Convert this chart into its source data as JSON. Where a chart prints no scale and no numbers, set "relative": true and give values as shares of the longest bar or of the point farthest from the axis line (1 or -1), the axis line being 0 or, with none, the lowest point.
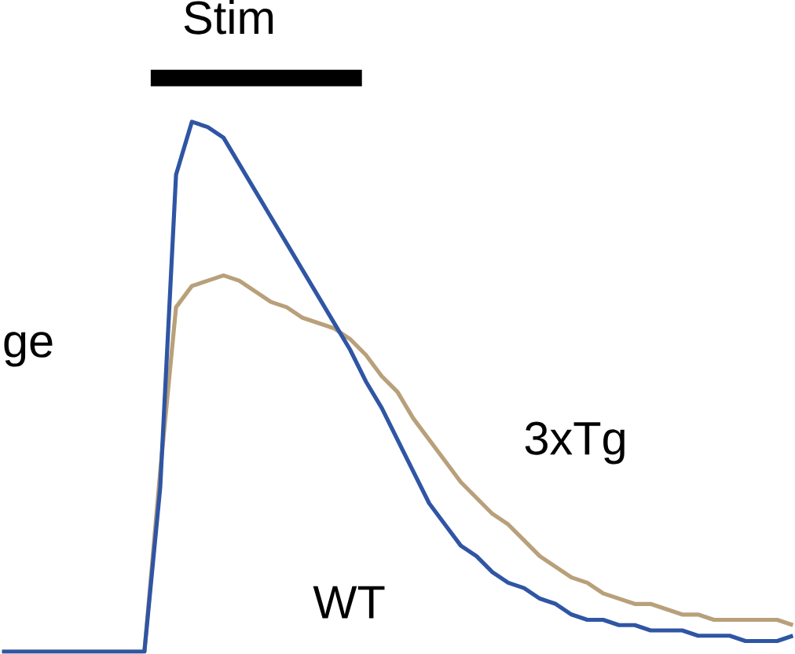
{
  "chart_data": {
    "type": "line",
    "relative": true,
    "marker": "none",
    "line_style": "solid",
    "annotations": [
      "Stim",
      "ge"
    ],
    "categories": [
      null,
      null,
      null,
      null,
      null,
      null,
      null,
      null,
      null,
      null,
      null,
      null,
      null,
      null,
      null,
      null,
      null,
      null,
      null,
      null,
      null,
      null,
      null,
      null,
      null,
      null,
      null,
      null,
      null,
      null,
      null,
      null,
      null,
      null,
      null,
      null,
      null,
      null,
      null,
      null,
      null,
      null,
      null,
      null,
      null,
      null,
      null,
      null,
      null,
      null,
      null
    ],
    "series": [
      {
        "name": "3xTg",
        "color": "#b8a07a",
        "values": [
          0,
          0,
          0,
          0,
          0,
          0,
          0,
          0,
          0,
          0,
          0.34,
          0.65,
          0.69,
          0.7,
          0.71,
          0.7,
          0.68,
          0.66,
          0.65,
          0.63,
          0.62,
          0.61,
          0.59,
          0.56,
          0.52,
          0.49,
          0.44,
          0.4,
          0.36,
          0.32,
          0.29,
          0.26,
          0.24,
          0.21,
          0.18,
          0.16,
          0.14,
          0.13,
          0.11,
          0.1,
          0.09,
          0.09,
          0.08,
          0.07,
          0.07,
          0.06,
          0.06,
          0.06,
          0.06,
          0.06,
          0.05
        ]
      },
      {
        "name": "WT",
        "color": "#2f55a4",
        "values": [
          0,
          0,
          0,
          0,
          0,
          0,
          0,
          0,
          0,
          0,
          0.31,
          0.9,
          1.0,
          0.99,
          0.97,
          0.92,
          0.87,
          0.82,
          0.77,
          0.72,
          0.67,
          0.62,
          0.57,
          0.51,
          0.46,
          0.4,
          0.34,
          0.28,
          0.24,
          0.2,
          0.18,
          0.15,
          0.13,
          0.12,
          0.1,
          0.09,
          0.07,
          0.06,
          0.06,
          0.05,
          0.05,
          0.04,
          0.04,
          0.04,
          0.03,
          0.03,
          0.03,
          0.02,
          0.02,
          0.02,
          0.03
        ]
      }
    ]
  }
}
